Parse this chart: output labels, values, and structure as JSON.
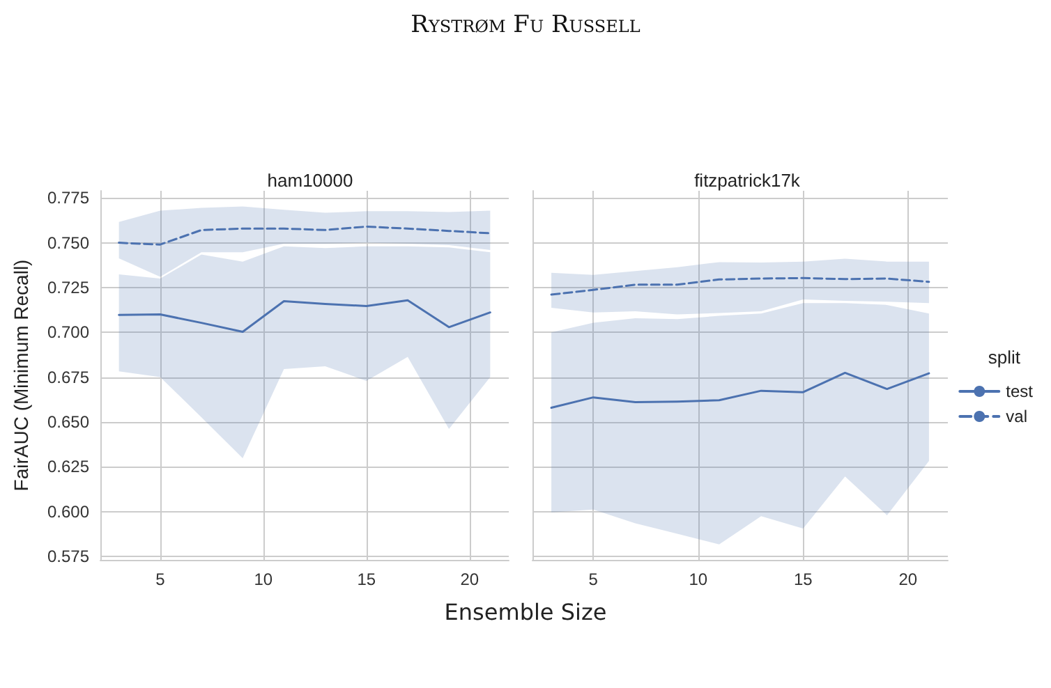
{
  "chart_data": [
    {
      "type": "line",
      "title": "ham10000",
      "xlabel": "Ensemble Size",
      "ylabel": "FairAUC (Minimum Recall)",
      "annotations": [
        "Rystrøm Fu Russell"
      ],
      "x": [
        3,
        5,
        7,
        9,
        11,
        13,
        15,
        17,
        19,
        21
      ],
      "xlim": [
        2.1,
        21.9
      ],
      "xticks": [
        5,
        10,
        15,
        20
      ],
      "ylim": [
        0.573,
        0.779
      ],
      "yticks": [
        0.575,
        {
          "value": 0.6,
          "label": "0.600"
        },
        0.625,
        {
          "value": 0.65,
          "label": "0.650"
        },
        0.675,
        {
          "value": 0.7,
          "label": "0.700"
        },
        0.725,
        {
          "value": 0.75,
          "label": "0.750"
        },
        0.775
      ],
      "grid": true,
      "marker": "none",
      "series": [
        {
          "color": "#4c72b0",
          "line_style": "solid",
          "values": [
            0.7097,
            0.71,
            0.7053,
            0.7003,
            0.7174,
            0.7158,
            0.7147,
            0.7179,
            0.7029,
            0.7111
          ],
          "lower": [
            0.6782,
            0.675,
            0.6526,
            0.6297,
            0.6795,
            0.6811,
            0.6729,
            0.6863,
            0.6461,
            0.675
          ],
          "upper": [
            0.7324,
            0.73,
            0.7434,
            0.7395,
            0.748,
            0.747,
            0.748,
            0.748,
            0.7474,
            0.7447
          ]
        },
        {
          "color": "#4c72b0",
          "line_style": "dashed",
          "values": [
            0.75,
            0.749,
            0.7571,
            0.7579,
            0.7579,
            0.7571,
            0.759,
            0.7579,
            0.7566,
            0.7553
          ],
          "lower": [
            0.7413,
            0.731,
            0.7447,
            0.7447,
            0.7495,
            0.7495,
            0.75,
            0.7495,
            0.7487,
            0.746
          ],
          "upper": [
            0.7616,
            0.7679,
            0.7695,
            0.7703,
            0.7684,
            0.7668,
            0.7676,
            0.7676,
            0.7671,
            0.7679
          ]
        }
      ]
    },
    {
      "type": "line",
      "title": "fitzpatrick17k",
      "legend": "right",
      "legend_title": "split",
      "tick_labels": "x",
      "x": [
        3,
        5,
        7,
        9,
        11,
        13,
        15,
        17,
        19,
        21
      ],
      "xlim": [
        2.1,
        21.9
      ],
      "xticks": [
        5,
        10,
        15,
        20
      ],
      "ylim": [
        0.573,
        0.779
      ],
      "yticks": [
        0.575,
        0.6,
        0.625,
        0.65,
        0.675,
        0.7,
        0.725,
        0.75,
        0.775
      ],
      "grid": true,
      "marker": "none",
      "series": [
        {
          "name": "test",
          "color": "#4c72b0",
          "line_style": "solid",
          "values": [
            0.6579,
            0.6637,
            0.661,
            0.6613,
            0.6621,
            0.6674,
            0.6666,
            0.6774,
            0.6684,
            0.6771
          ],
          "lower": [
            0.5995,
            0.6011,
            0.5934,
            0.5876,
            0.5816,
            0.5974,
            0.5905,
            0.6195,
            0.5979,
            0.6282
          ],
          "upper": [
            0.7,
            0.7053,
            0.7079,
            0.7074,
            0.7092,
            0.7105,
            0.7163,
            0.7163,
            0.7153,
            0.7105
          ]
        },
        {
          "name": "val",
          "color": "#4c72b0",
          "line_style": "dashed",
          "values": [
            0.7211,
            0.7237,
            0.7266,
            0.7266,
            0.7295,
            0.73,
            0.7303,
            0.7297,
            0.73,
            0.7282
          ],
          "lower": [
            0.7137,
            0.7111,
            0.7118,
            0.71,
            0.7108,
            0.7118,
            0.7184,
            0.7176,
            0.7171,
            0.7163
          ],
          "upper": [
            0.7332,
            0.7321,
            0.7342,
            0.7363,
            0.7392,
            0.739,
            0.7395,
            0.7411,
            0.7395,
            0.7395
          ]
        }
      ]
    }
  ]
}
